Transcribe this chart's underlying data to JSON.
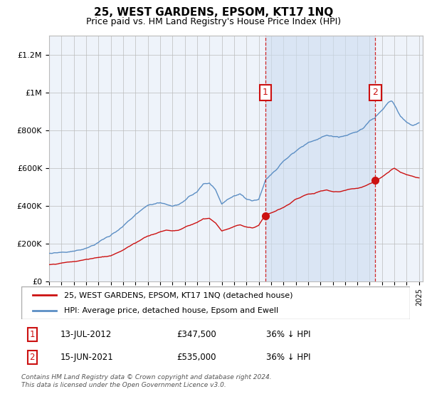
{
  "title": "25, WEST GARDENS, EPSOM, KT17 1NQ",
  "subtitle": "Price paid vs. HM Land Registry's House Price Index (HPI)",
  "ylim": [
    0,
    1300000
  ],
  "yticks": [
    0,
    200000,
    400000,
    600000,
    800000,
    1000000,
    1200000
  ],
  "ytick_labels": [
    "£0",
    "£200K",
    "£400K",
    "£600K",
    "£800K",
    "£1M",
    "£1.2M"
  ],
  "hpi_color": "#5b8ec4",
  "hpi_fill_color": "#cdddf0",
  "price_color": "#cc1111",
  "dashed_color": "#cc1111",
  "marker_color": "#cc1111",
  "annotation_box_color": "#cc1111",
  "background_color": "#eef3fa",
  "legend_label_price": "25, WEST GARDENS, EPSOM, KT17 1NQ (detached house)",
  "legend_label_hpi": "HPI: Average price, detached house, Epsom and Ewell",
  "purchase1_label": "1",
  "purchase1_date": "13-JUL-2012",
  "purchase1_price": "£347,500",
  "purchase1_hpi": "36% ↓ HPI",
  "purchase1_year": 2012.55,
  "purchase1_value": 347500,
  "purchase2_label": "2",
  "purchase2_date": "15-JUN-2021",
  "purchase2_price": "£535,000",
  "purchase2_hpi": "36% ↓ HPI",
  "purchase2_year": 2021.45,
  "purchase2_value": 535000,
  "footer": "Contains HM Land Registry data © Crown copyright and database right 2024.\nThis data is licensed under the Open Government Licence v3.0.",
  "grid_color": "#bbbbbb",
  "title_fontsize": 11,
  "subtitle_fontsize": 9,
  "tick_fontsize": 8
}
